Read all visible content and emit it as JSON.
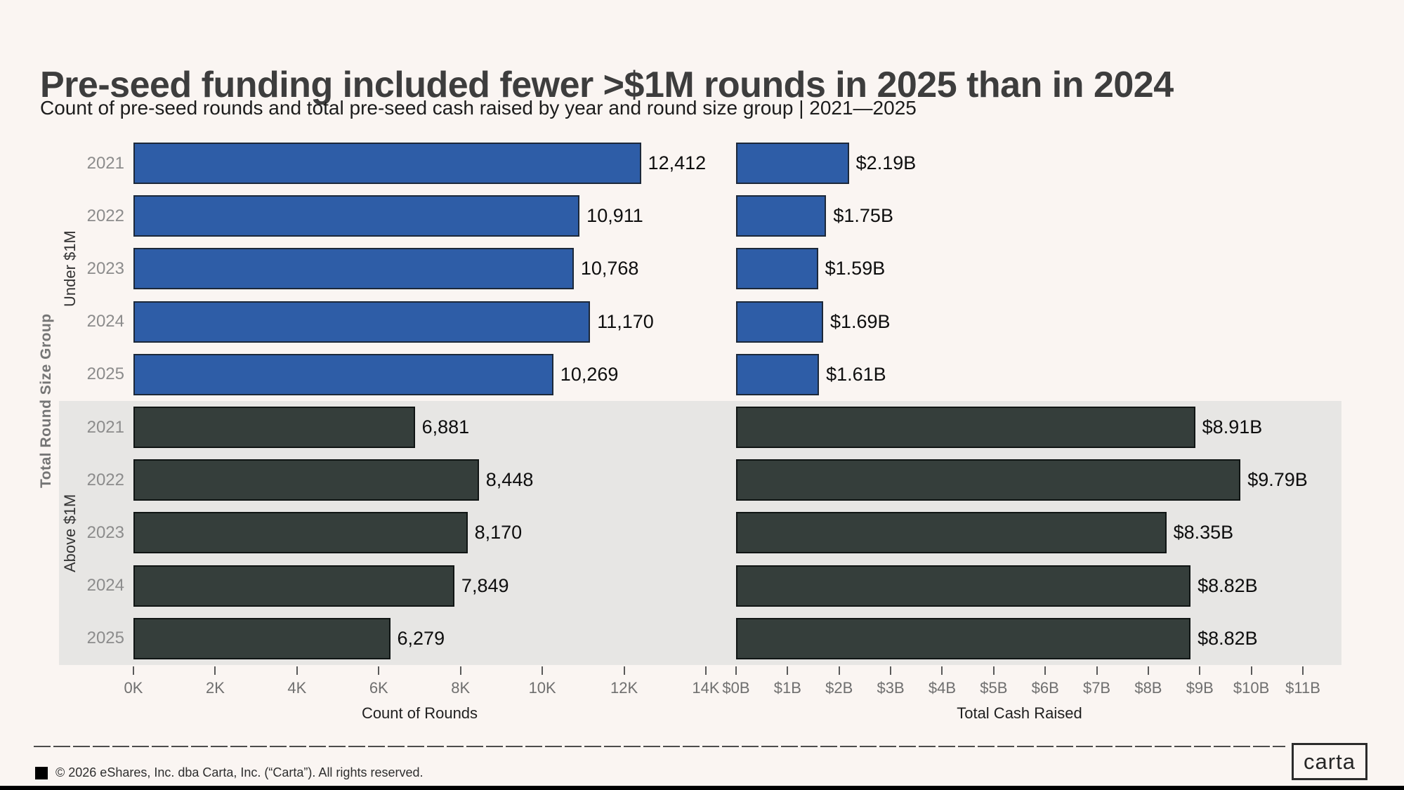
{
  "header": {
    "title": "Pre-seed funding included fewer >$1M rounds in 2025 than in 2024",
    "subtitle": "Count of pre-seed rounds and total pre-seed cash raised by year and round size group | 2021—2025"
  },
  "y_axis_title": "Total Round Size Group",
  "colors": {
    "background": "#faf5f2",
    "group_band": "#e7e6e4",
    "under_1m_fill": "#2e5da7",
    "under_1m_stroke": "#1c2839",
    "above_1m_fill": "#353e3b",
    "above_1m_stroke": "#101514",
    "title_text": "#3d3d3d",
    "year_label": "#8c8c8c",
    "tick_label": "#6f6f6f",
    "bottom_strip": "#000000"
  },
  "chart_data": [
    {
      "type": "bar",
      "orientation": "horizontal",
      "xlabel": "Count of Rounds",
      "xlim": [
        0,
        14000
      ],
      "tick_values": [
        0,
        2000,
        4000,
        6000,
        8000,
        10000,
        12000,
        14000
      ],
      "tick_labels": [
        "0K",
        "2K",
        "4K",
        "6K",
        "8K",
        "10K",
        "12K",
        "14K"
      ],
      "groups": [
        {
          "label": "Under $1M",
          "color": "under_1m",
          "categories": [
            "2021",
            "2022",
            "2023",
            "2024",
            "2025"
          ],
          "values": [
            12412,
            10911,
            10768,
            11170,
            10269
          ],
          "value_labels": [
            "12,412",
            "10,911",
            "10,768",
            "11,170",
            "10,269"
          ]
        },
        {
          "label": "Above $1M",
          "color": "above_1m",
          "categories": [
            "2021",
            "2022",
            "2023",
            "2024",
            "2025"
          ],
          "values": [
            6881,
            8448,
            8170,
            7849,
            6279
          ],
          "value_labels": [
            "6,881",
            "8,448",
            "8,170",
            "7,849",
            "6,279"
          ]
        }
      ]
    },
    {
      "type": "bar",
      "orientation": "horizontal",
      "xlabel": "Total Cash Raised",
      "xlim": [
        0,
        11
      ],
      "tick_values": [
        0,
        1,
        2,
        3,
        4,
        5,
        6,
        7,
        8,
        9,
        10,
        11
      ],
      "tick_labels": [
        "$0B",
        "$1B",
        "$2B",
        "$3B",
        "$4B",
        "$5B",
        "$6B",
        "$7B",
        "$8B",
        "$9B",
        "$10B",
        "$11B"
      ],
      "groups": [
        {
          "label": "Under $1M",
          "color": "under_1m",
          "categories": [
            "2021",
            "2022",
            "2023",
            "2024",
            "2025"
          ],
          "values": [
            2.19,
            1.75,
            1.59,
            1.69,
            1.61
          ],
          "value_labels": [
            "$2.19B",
            "$1.75B",
            "$1.59B",
            "$1.69B",
            "$1.61B"
          ]
        },
        {
          "label": "Above $1M",
          "color": "above_1m",
          "categories": [
            "2021",
            "2022",
            "2023",
            "2024",
            "2025"
          ],
          "values": [
            8.91,
            9.79,
            8.35,
            8.82,
            8.82
          ],
          "value_labels": [
            "$8.91B",
            "$9.79B",
            "$8.35B",
            "$8.82B",
            "$8.82B"
          ]
        }
      ]
    }
  ],
  "footer": {
    "copyright": "© 2026 eShares, Inc. dba Carta, Inc. (“Carta”). All rights reserved.",
    "logo_text": "carta"
  }
}
